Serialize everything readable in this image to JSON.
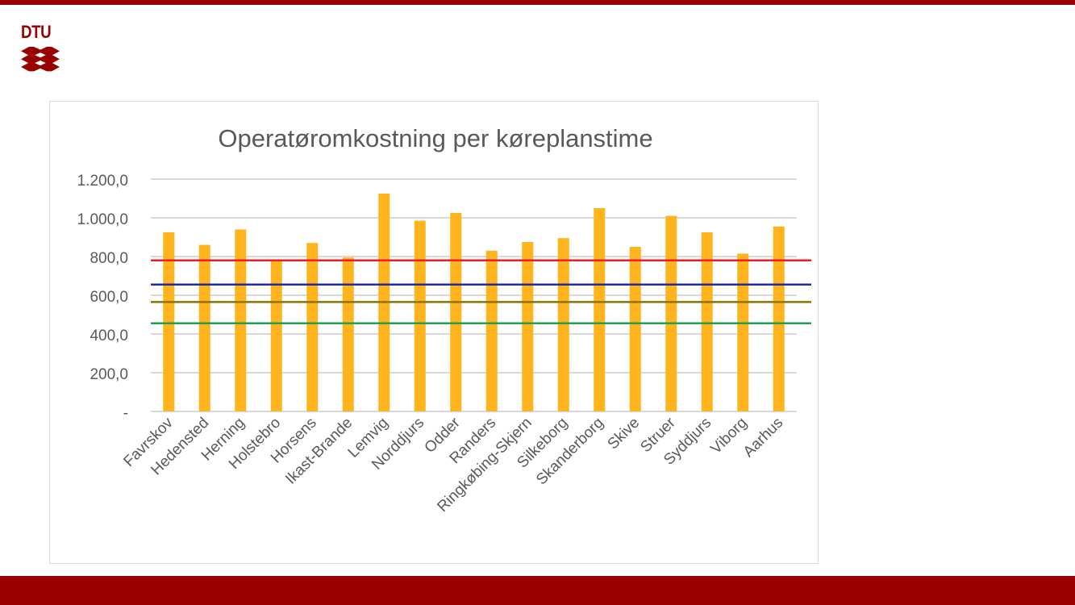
{
  "logo": {
    "text": "DTU"
  },
  "colors": {
    "brand": "#990000",
    "bar": "#FFB41E",
    "grid": "#d9d9d9",
    "text": "#595959"
  },
  "chart_data": {
    "type": "bar",
    "title": "Operatøromkostning per køreplanstime",
    "xlabel": "",
    "ylabel": "",
    "ylim": [
      0,
      1200
    ],
    "yticks": [
      0,
      200,
      400,
      600,
      800,
      1000,
      1200
    ],
    "ytick_labels": [
      "-",
      "200,0",
      "400,0",
      "600,0",
      "800,0",
      "1.000,0",
      "1.200,0"
    ],
    "grid": true,
    "categories": [
      "Favrskov",
      "Hedensted",
      "Herning",
      "Holstebro",
      "Horsens",
      "Ikast-Brande",
      "Lemvig",
      "Norddjurs",
      "Odder",
      "Randers",
      "Ringkøbing-Skjern",
      "Silkeborg",
      "Skanderborg",
      "Skive",
      "Struer",
      "Syddjurs",
      "Viborg",
      "Aarhus"
    ],
    "values": [
      925,
      860,
      940,
      775,
      870,
      795,
      1125,
      985,
      1025,
      830,
      875,
      895,
      1050,
      850,
      1010,
      925,
      815,
      955
    ],
    "reference_lines": [
      {
        "value": 780,
        "color": "#ED1C24"
      },
      {
        "value": 655,
        "color": "#1F2E9C"
      },
      {
        "value": 565,
        "color": "#8C7300"
      },
      {
        "value": 455,
        "color": "#20A050"
      }
    ]
  }
}
